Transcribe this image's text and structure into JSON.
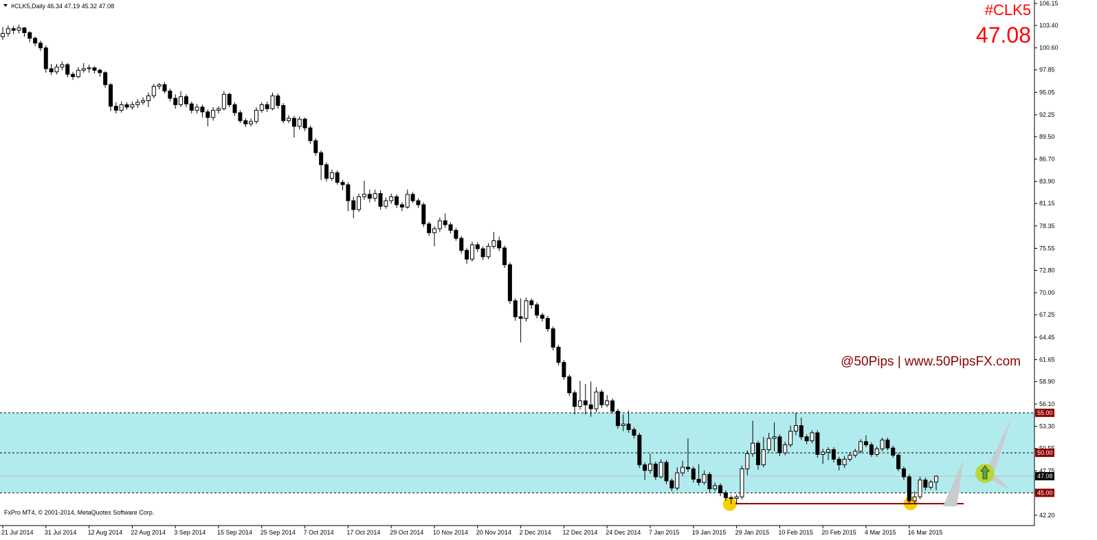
{
  "chart_data": {
    "type": "candlestick",
    "header": "#CLK5,Daily  46.34 47.19 45.32 47.08",
    "symbol": "#CLK5",
    "price": "47.08",
    "watermark": "@50Pips | www.50PipsFX.com",
    "copyright": "FxPro MT4, © 2001-2014, MetaQuotes Software Corp.",
    "ylim": [
      40.91,
      106.58
    ],
    "yticks": [
      106.15,
      {
        "value": 103.4,
        "label": "103.40"
      },
      {
        "value": 100.6,
        "label": "100.60"
      },
      97.85,
      95.05,
      92.25,
      {
        "value": 89.5,
        "label": "89.50"
      },
      {
        "value": 86.7,
        "label": "86.70"
      },
      {
        "value": 83.9,
        "label": "83.90"
      },
      81.15,
      78.35,
      75.55,
      {
        "value": 72.8,
        "label": "72.80"
      },
      {
        "value": 70,
        "label": "70.00"
      },
      67.25,
      64.45,
      61.65,
      {
        "value": 58.9,
        "label": "58.90"
      },
      {
        "value": 56.1,
        "label": "56.10"
      },
      {
        "value": 53.3,
        "label": "53.30"
      },
      50.55,
      47.75,
      {
        "value": 45,
        "label": "45.00"
      },
      {
        "value": 42.2,
        "label": "42.20"
      }
    ],
    "zone": [
      45,
      55
    ],
    "levels": [
      {
        "value": 55,
        "label": "55.00"
      },
      {
        "value": 50,
        "label": "50.00"
      },
      {
        "value": 45,
        "label": "45.00"
      }
    ],
    "bid": {
      "value": 47.08,
      "label": "47.08"
    },
    "support": 43.65,
    "up_color": "#ffffff",
    "down_color": "#000000",
    "zone_color": "#b2ebee",
    "level_color": "#8b0000",
    "categories": [
      "21 Jul 2014",
      null,
      null,
      null,
      null,
      null,
      null,
      null,
      "31 Jul 2014",
      null,
      null,
      null,
      null,
      null,
      null,
      null,
      "12 Aug 2014",
      null,
      null,
      null,
      null,
      null,
      null,
      null,
      "22 Aug 2014",
      null,
      null,
      null,
      null,
      null,
      null,
      null,
      "3 Sep 2014",
      null,
      null,
      null,
      null,
      null,
      null,
      null,
      "15 Sep 2014",
      null,
      null,
      null,
      null,
      null,
      null,
      null,
      "25 Sep 2014",
      null,
      null,
      null,
      null,
      null,
      null,
      null,
      "7 Oct 2014",
      null,
      null,
      null,
      null,
      null,
      null,
      null,
      "17 Oct 2014",
      null,
      null,
      null,
      null,
      null,
      null,
      null,
      "29 Oct 2014",
      null,
      null,
      null,
      null,
      null,
      null,
      null,
      "10 Nov 2014",
      null,
      null,
      null,
      null,
      null,
      null,
      null,
      "20 Nov 2014",
      null,
      null,
      null,
      null,
      null,
      null,
      null,
      "2 Dec 2014",
      null,
      null,
      null,
      null,
      null,
      null,
      null,
      "12 Dec 2014",
      null,
      null,
      null,
      null,
      null,
      null,
      null,
      "24 Dec 2014",
      null,
      null,
      null,
      null,
      null,
      null,
      null,
      "7 Jan 2015",
      null,
      null,
      null,
      null,
      null,
      null,
      null,
      "19 Jan 2015",
      null,
      null,
      null,
      null,
      null,
      null,
      null,
      "29 Jan 2015",
      null,
      null,
      null,
      null,
      null,
      null,
      null,
      "10 Feb 2015",
      null,
      null,
      null,
      null,
      null,
      null,
      null,
      "20 Feb 2015",
      null,
      null,
      null,
      null,
      null,
      null,
      null,
      "4 Mar 2015",
      null,
      null,
      null,
      null,
      null,
      null,
      null,
      "16 Mar 2015",
      null,
      null,
      null,
      null,
      null
    ],
    "candles": [
      [
        102.0,
        103.2,
        101.6,
        102.4
      ],
      [
        102.4,
        103.4,
        102.0,
        103.0
      ],
      [
        103.0,
        103.3,
        102.3,
        102.8
      ],
      [
        102.8,
        103.5,
        102.4,
        103.1
      ],
      [
        103.1,
        103.2,
        102.0,
        102.5
      ],
      [
        102.5,
        102.7,
        101.3,
        101.8
      ],
      [
        101.8,
        102.0,
        100.8,
        101.2
      ],
      [
        101.2,
        101.5,
        100.2,
        100.6
      ],
      [
        100.6,
        100.9,
        97.5,
        98.0
      ],
      [
        98.0,
        98.6,
        97.2,
        97.6
      ],
      [
        97.6,
        98.6,
        97.3,
        98.2
      ],
      [
        98.2,
        98.9,
        97.8,
        98.5
      ],
      [
        98.5,
        98.7,
        96.9,
        97.3
      ],
      [
        97.3,
        97.6,
        96.6,
        97.0
      ],
      [
        97.0,
        98.2,
        96.8,
        97.8
      ],
      [
        97.8,
        98.7,
        97.5,
        98.0
      ],
      [
        98.0,
        98.5,
        97.5,
        98.1
      ],
      [
        98.1,
        98.3,
        97.4,
        97.8
      ],
      [
        97.8,
        98.0,
        97.0,
        97.5
      ],
      [
        97.5,
        97.7,
        95.6,
        96.0
      ],
      [
        96.0,
        96.2,
        92.7,
        93.3
      ],
      [
        93.3,
        93.8,
        92.4,
        92.8
      ],
      [
        92.8,
        93.9,
        92.5,
        93.5
      ],
      [
        93.5,
        93.8,
        92.9,
        93.2
      ],
      [
        93.2,
        93.9,
        92.9,
        93.5
      ],
      [
        93.5,
        94.2,
        93.1,
        93.8
      ],
      [
        93.8,
        94.4,
        93.5,
        94.0
      ],
      [
        94.0,
        95.0,
        93.2,
        94.6
      ],
      [
        94.6,
        96.1,
        94.3,
        95.8
      ],
      [
        95.8,
        96.2,
        95.4,
        96.0
      ],
      [
        96.0,
        96.3,
        94.9,
        95.2
      ],
      [
        95.2,
        95.5,
        93.9,
        94.3
      ],
      [
        94.3,
        94.8,
        93.0,
        93.5
      ],
      [
        93.5,
        95.2,
        93.2,
        94.5
      ],
      [
        94.5,
        94.8,
        93.2,
        93.6
      ],
      [
        93.6,
        93.9,
        92.4,
        92.8
      ],
      [
        92.8,
        93.6,
        92.4,
        93.2
      ],
      [
        93.2,
        93.5,
        91.9,
        92.6
      ],
      [
        92.6,
        92.9,
        90.8,
        91.9
      ],
      [
        91.9,
        93.2,
        91.5,
        92.8
      ],
      [
        92.8,
        93.3,
        92.4,
        93.0
      ],
      [
        93.0,
        95.2,
        92.8,
        94.8
      ],
      [
        94.8,
        95.0,
        93.2,
        93.5
      ],
      [
        93.5,
        93.8,
        92.1,
        92.5
      ],
      [
        92.5,
        92.8,
        91.2,
        91.5
      ],
      [
        91.5,
        91.8,
        90.7,
        91.1
      ],
      [
        91.1,
        91.8,
        90.8,
        91.4
      ],
      [
        91.4,
        93.2,
        91.1,
        92.8
      ],
      [
        92.8,
        93.8,
        92.5,
        93.5
      ],
      [
        93.5,
        93.9,
        92.6,
        93.0
      ],
      [
        93.0,
        95.0,
        92.8,
        94.6
      ],
      [
        94.6,
        94.9,
        93.0,
        93.4
      ],
      [
        93.4,
        93.7,
        91.2,
        91.5
      ],
      [
        91.5,
        92.2,
        91.2,
        91.8
      ],
      [
        91.8,
        92.1,
        89.4,
        90.8
      ],
      [
        90.8,
        92.0,
        90.4,
        91.7
      ],
      [
        91.7,
        91.9,
        90.2,
        90.6
      ],
      [
        90.6,
        90.9,
        88.6,
        89.0
      ],
      [
        89.0,
        89.3,
        87.1,
        87.5
      ],
      [
        87.5,
        87.8,
        84.1,
        86.0
      ],
      [
        86.0,
        86.3,
        83.9,
        84.3
      ],
      [
        84.3,
        85.4,
        84.0,
        85.0
      ],
      [
        85.0,
        85.3,
        83.5,
        83.8
      ],
      [
        83.8,
        84.1,
        82.8,
        83.5
      ],
      [
        83.5,
        83.8,
        80.2,
        81.5
      ],
      [
        81.5,
        82.0,
        79.3,
        80.4
      ],
      [
        80.4,
        82.4,
        80.1,
        82.0
      ],
      [
        82.0,
        84.0,
        81.6,
        82.3
      ],
      [
        82.3,
        82.9,
        81.3,
        81.8
      ],
      [
        81.8,
        82.9,
        81.4,
        82.4
      ],
      [
        82.4,
        82.8,
        80.4,
        80.8
      ],
      [
        80.8,
        81.9,
        80.5,
        81.5
      ],
      [
        81.5,
        82.4,
        81.1,
        82.0
      ],
      [
        82.0,
        82.3,
        80.6,
        81.0
      ],
      [
        81.0,
        81.3,
        80.2,
        80.7
      ],
      [
        80.7,
        82.9,
        80.5,
        82.3
      ],
      [
        82.3,
        82.6,
        81.2,
        81.5
      ],
      [
        81.5,
        81.8,
        80.6,
        81.0
      ],
      [
        81.0,
        81.3,
        78.2,
        78.6
      ],
      [
        78.6,
        78.9,
        77.1,
        77.5
      ],
      [
        77.5,
        78.3,
        75.8,
        78.0
      ],
      [
        78.0,
        79.4,
        77.6,
        79.0
      ],
      [
        79.0,
        79.9,
        78.1,
        78.5
      ],
      [
        78.5,
        78.8,
        77.4,
        77.8
      ],
      [
        77.8,
        78.1,
        76.5,
        76.8
      ],
      [
        76.8,
        77.1,
        74.9,
        75.3
      ],
      [
        75.3,
        75.6,
        73.6,
        74.2
      ],
      [
        74.2,
        76.4,
        73.9,
        76.0
      ],
      [
        76.0,
        76.3,
        75.1,
        75.5
      ],
      [
        75.5,
        75.8,
        74.1,
        74.5
      ],
      [
        74.5,
        76.2,
        74.2,
        75.8
      ],
      [
        75.8,
        77.6,
        75.5,
        76.5
      ],
      [
        76.5,
        77.0,
        75.2,
        75.6
      ],
      [
        75.6,
        75.9,
        73.1,
        73.5
      ],
      [
        73.5,
        73.8,
        68.6,
        69.0
      ],
      [
        69.0,
        69.3,
        66.5,
        67.0
      ],
      [
        67.0,
        69.3,
        63.8,
        66.8
      ],
      [
        66.8,
        69.4,
        66.4,
        69.0
      ],
      [
        69.0,
        69.3,
        68.0,
        68.5
      ],
      [
        68.5,
        68.8,
        66.8,
        67.2
      ],
      [
        67.2,
        67.5,
        66.4,
        66.8
      ],
      [
        66.8,
        67.1,
        65.1,
        65.5
      ],
      [
        65.5,
        65.8,
        62.8,
        63.2
      ],
      [
        63.2,
        63.5,
        60.9,
        61.3
      ],
      [
        61.3,
        61.6,
        59.1,
        59.5
      ],
      [
        59.5,
        59.8,
        57.1,
        57.5
      ],
      [
        57.5,
        57.8,
        54.8,
        55.8
      ],
      [
        55.8,
        59.0,
        55.4,
        56.5
      ],
      [
        56.5,
        58.6,
        54.8,
        56.0
      ],
      [
        56.0,
        58.9,
        54.5,
        55.5
      ],
      [
        55.5,
        58.2,
        55.1,
        57.6
      ],
      [
        57.6,
        57.9,
        55.6,
        56.0
      ],
      [
        56.0,
        57.2,
        55.7,
        56.5
      ],
      [
        56.5,
        56.8,
        54.9,
        55.2
      ],
      [
        55.2,
        55.5,
        53.0,
        53.4
      ],
      [
        53.4,
        54.8,
        52.7,
        53.6
      ],
      [
        53.6,
        55.3,
        52.5,
        52.9
      ],
      [
        52.9,
        53.2,
        51.8,
        52.2
      ],
      [
        52.2,
        52.5,
        48.1,
        48.5
      ],
      [
        48.5,
        48.8,
        46.6,
        47.8
      ],
      [
        47.8,
        49.9,
        47.4,
        48.6
      ],
      [
        48.6,
        48.9,
        46.6,
        47.0
      ],
      [
        47.0,
        49.2,
        46.8,
        48.8
      ],
      [
        48.8,
        49.1,
        46.1,
        46.5
      ],
      [
        46.5,
        46.8,
        45.2,
        45.6
      ],
      [
        45.6,
        48.2,
        45.3,
        47.5
      ],
      [
        47.5,
        49.0,
        47.1,
        48.2
      ],
      [
        48.2,
        51.8,
        47.6,
        48.0
      ],
      [
        48.0,
        48.3,
        46.3,
        46.7
      ],
      [
        46.7,
        48.6,
        45.9,
        46.3
      ],
      [
        46.3,
        47.8,
        46.0,
        47.3
      ],
      [
        47.3,
        47.6,
        45.1,
        45.5
      ],
      [
        45.5,
        46.3,
        45.2,
        45.9
      ],
      [
        45.9,
        46.2,
        44.6,
        45.0
      ],
      [
        45.0,
        45.3,
        44.0,
        44.4
      ],
      [
        44.4,
        44.7,
        43.6,
        44.3
      ],
      [
        44.3,
        44.8,
        43.6,
        44.5
      ],
      [
        44.5,
        48.4,
        44.2,
        48.0
      ],
      [
        48.0,
        50.3,
        47.2,
        49.9
      ],
      [
        49.9,
        54.0,
        49.5,
        51.2
      ],
      [
        51.2,
        51.5,
        47.9,
        48.5
      ],
      [
        48.5,
        52.0,
        48.2,
        50.4
      ],
      [
        50.4,
        52.5,
        50.1,
        51.8
      ],
      [
        51.8,
        53.8,
        50.2,
        52.0
      ],
      [
        52.0,
        52.3,
        49.6,
        50.0
      ],
      [
        50.0,
        51.4,
        49.7,
        51.0
      ],
      [
        51.0,
        53.4,
        50.7,
        52.7
      ],
      [
        52.7,
        55.0,
        52.2,
        53.4
      ],
      [
        53.4,
        54.4,
        51.6,
        52.0
      ],
      [
        52.0,
        52.3,
        51.1,
        51.5
      ],
      [
        51.5,
        52.8,
        51.2,
        52.5
      ],
      [
        52.5,
        52.8,
        49.4,
        49.8
      ],
      [
        49.8,
        50.5,
        48.6,
        50.1
      ],
      [
        50.1,
        50.7,
        49.1,
        50.4
      ],
      [
        50.4,
        50.7,
        48.8,
        49.2
      ],
      [
        49.2,
        49.5,
        47.8,
        48.5
      ],
      [
        48.5,
        49.6,
        48.1,
        49.2
      ],
      [
        49.2,
        50.1,
        48.9,
        49.7
      ],
      [
        49.7,
        50.5,
        49.4,
        50.2
      ],
      [
        50.2,
        51.7,
        49.9,
        51.4
      ],
      [
        51.4,
        52.2,
        50.7,
        51.0
      ],
      [
        51.0,
        51.3,
        49.5,
        49.8
      ],
      [
        49.8,
        50.8,
        49.5,
        50.5
      ],
      [
        50.5,
        51.9,
        50.2,
        51.6
      ],
      [
        51.6,
        51.9,
        50.3,
        50.6
      ],
      [
        50.6,
        50.9,
        49.4,
        49.7
      ],
      [
        49.7,
        50.0,
        47.7,
        48.0
      ],
      [
        48.0,
        48.3,
        46.6,
        47.0
      ],
      [
        47.0,
        47.3,
        43.7,
        44.0
      ],
      [
        44.0,
        45.2,
        43.6,
        44.5
      ],
      [
        44.5,
        47.0,
        44.2,
        46.6
      ],
      [
        46.6,
        46.9,
        45.3,
        45.7
      ],
      [
        45.7,
        46.6,
        45.4,
        46.34
      ],
      [
        46.34,
        47.19,
        45.32,
        47.08
      ]
    ]
  }
}
